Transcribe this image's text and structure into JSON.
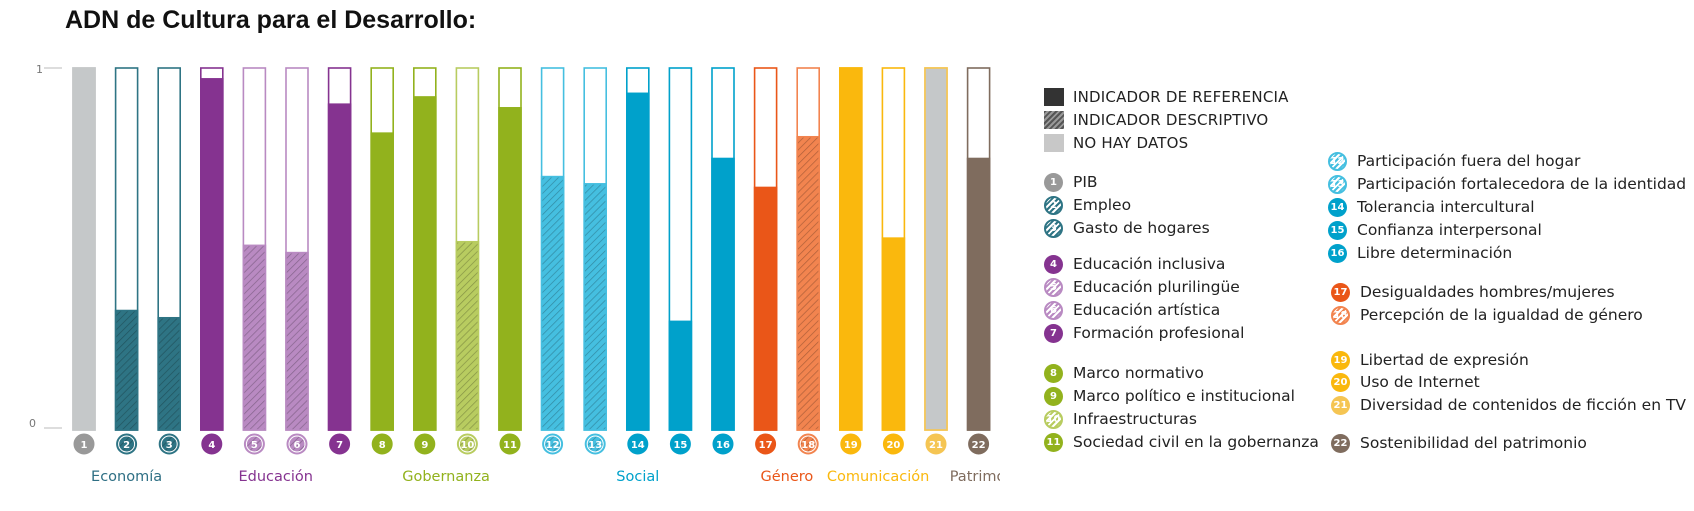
{
  "title": "ADN de Cultura para el Desarrollo:",
  "chart_data": {
    "type": "bar",
    "ylim": [
      0,
      1
    ],
    "yticks": [
      "1",
      "0"
    ],
    "bars": [
      {
        "num": "1",
        "value": 1.0,
        "style": "nodata",
        "color": "#c5c8c9",
        "group": "Economía"
      },
      {
        "num": "2",
        "value": 0.33,
        "style": "hatch",
        "color": "#2e7484",
        "group": "Economía"
      },
      {
        "num": "3",
        "value": 0.31,
        "style": "hatch",
        "color": "#2e7484",
        "group": "Economía"
      },
      {
        "num": "4",
        "value": 0.97,
        "style": "solid",
        "color": "#853390",
        "group": "Educación"
      },
      {
        "num": "5",
        "value": 0.51,
        "style": "hatch",
        "color": "#b98ac2",
        "group": "Educación"
      },
      {
        "num": "6",
        "value": 0.49,
        "style": "hatch",
        "color": "#b98ac2",
        "group": "Educación"
      },
      {
        "num": "7",
        "value": 0.9,
        "style": "solid",
        "color": "#853390",
        "group": "Educación"
      },
      {
        "num": "8",
        "value": 0.82,
        "style": "solid",
        "color": "#92b21d",
        "group": "Gobernanza"
      },
      {
        "num": "9",
        "value": 0.92,
        "style": "solid",
        "color": "#92b21d",
        "group": "Gobernanza"
      },
      {
        "num": "10",
        "value": 0.52,
        "style": "hatch",
        "color": "#b8cc60",
        "group": "Gobernanza"
      },
      {
        "num": "11",
        "value": 0.89,
        "style": "solid",
        "color": "#92b21d",
        "group": "Gobernanza"
      },
      {
        "num": "12",
        "value": 0.7,
        "style": "hatch",
        "color": "#45bfe0",
        "group": "Social"
      },
      {
        "num": "13",
        "value": 0.68,
        "style": "hatch",
        "color": "#45bfe0",
        "group": "Social"
      },
      {
        "num": "14",
        "value": 0.93,
        "style": "solid",
        "color": "#00a1cb",
        "group": "Social"
      },
      {
        "num": "15",
        "value": 0.3,
        "style": "solid",
        "color": "#00a1cb",
        "group": "Social"
      },
      {
        "num": "16",
        "value": 0.75,
        "style": "solid",
        "color": "#00a1cb",
        "group": "Social"
      },
      {
        "num": "17",
        "value": 0.67,
        "style": "solid",
        "color": "#ea5618",
        "group": "Género"
      },
      {
        "num": "18",
        "value": 0.81,
        "style": "hatch",
        "color": "#f2844f",
        "group": "Género"
      },
      {
        "num": "19",
        "value": 1.0,
        "style": "solid",
        "color": "#fab80d",
        "group": "Comunicación"
      },
      {
        "num": "20",
        "value": 0.53,
        "style": "solid",
        "color": "#fab80d",
        "group": "Comunicación"
      },
      {
        "num": "21",
        "value": 1.0,
        "style": "nodata",
        "color": "#c5c8c9",
        "group": "Comunicación",
        "border": "#f5c553"
      },
      {
        "num": "22",
        "value": 0.75,
        "style": "solid",
        "color": "#7f6c5e",
        "group": "Patrimonio"
      }
    ],
    "groups": [
      {
        "label": "Economía",
        "color": "#2e6f84"
      },
      {
        "label": "Educación",
        "color": "#853390"
      },
      {
        "label": "Gobernanza",
        "color": "#92b21d"
      },
      {
        "label": "Social",
        "color": "#00a1cb"
      },
      {
        "label": "Género",
        "color": "#ea5618"
      },
      {
        "label": "Comunicación",
        "color": "#fab80d"
      },
      {
        "label": "Patrimonio",
        "color": "#7f6c5e"
      }
    ],
    "legend_types": [
      "INDICADOR DE REFERENCIA",
      "INDICADOR DESCRIPTIVO",
      "NO HAY DATOS"
    ],
    "indicators": [
      {
        "num": "1",
        "label": "PIB"
      },
      {
        "num": "2",
        "label": "Empleo"
      },
      {
        "num": "3",
        "label": "Gasto de hogares"
      },
      {
        "num": "4",
        "label": "Educación inclusiva"
      },
      {
        "num": "5",
        "label": "Educación plurilingüe"
      },
      {
        "num": "6",
        "label": "Educación artística"
      },
      {
        "num": "7",
        "label": "Formación profesional"
      },
      {
        "num": "8",
        "label": "Marco normativo"
      },
      {
        "num": "9",
        "label": "Marco político e institucional"
      },
      {
        "num": "10",
        "label": "Infraestructuras"
      },
      {
        "num": "11",
        "label": "Sociedad civil en la gobernanza"
      },
      {
        "num": "12",
        "label": "Participación fuera del hogar"
      },
      {
        "num": "13",
        "label": "Participación fortalecedora de la identidad"
      },
      {
        "num": "14",
        "label": "Tolerancia intercultural"
      },
      {
        "num": "15",
        "label": "Confianza interpersonal"
      },
      {
        "num": "16",
        "label": "Libre determinación"
      },
      {
        "num": "17",
        "label": "Desigualdades hombres/mujeres"
      },
      {
        "num": "18",
        "label": "Percepción de la igualdad de género"
      },
      {
        "num": "19",
        "label": "Libertad de expresión"
      },
      {
        "num": "20",
        "label": "Uso de Internet"
      },
      {
        "num": "21",
        "label": "Diversidad de contenidos de ficción en TV"
      },
      {
        "num": "22",
        "label": "Sostenibilidad del patrimonio"
      }
    ]
  }
}
